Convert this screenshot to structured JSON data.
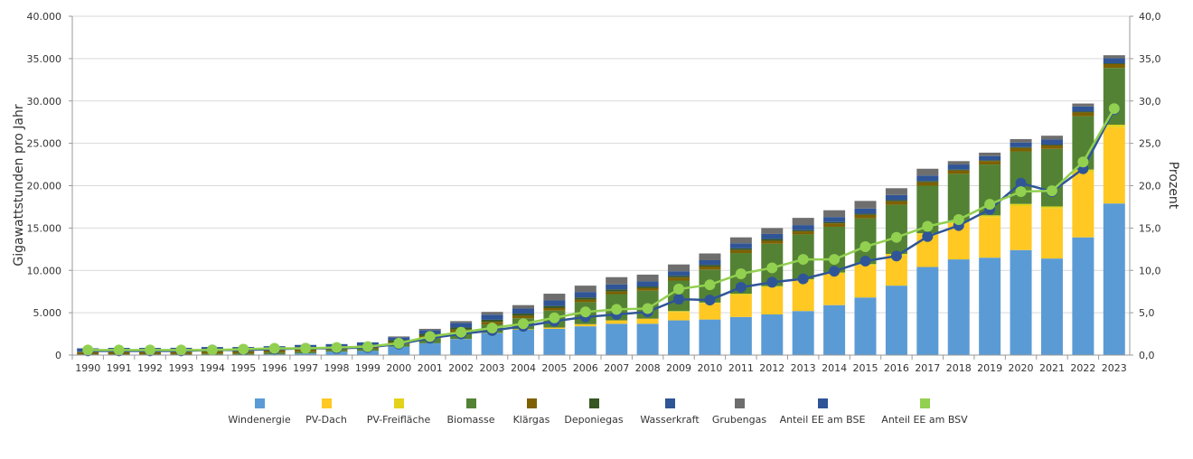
{
  "chart_data": {
    "type": "bar",
    "stacked": true,
    "ylabel": "Gigawattstunden pro Jahr",
    "y2label": "Prozent",
    "ylim": [
      0,
      40000
    ],
    "y2lim": [
      0,
      40
    ],
    "yticks": [
      "0",
      "5.000",
      "10.000",
      "15.000",
      "20.000",
      "25.000",
      "30.000",
      "35.000",
      "40.000"
    ],
    "y2ticks": [
      "0,0",
      "5,0",
      "10,0",
      "15,0",
      "20,0",
      "25,0",
      "30,0",
      "35,0",
      "40,0"
    ],
    "grid": true,
    "legend": "bottom",
    "categories": [
      "1990",
      "1991",
      "1992",
      "1993",
      "1994",
      "1995",
      "1996",
      "1997",
      "1998",
      "1999",
      "2000",
      "2001",
      "2002",
      "2003",
      "2004",
      "2005",
      "2006",
      "2007",
      "2008",
      "2009",
      "2010",
      "2011",
      "2012",
      "2013",
      "2014",
      "2015",
      "2016",
      "2017",
      "2018",
      "2019",
      "2020",
      "2021",
      "2022",
      "2023"
    ],
    "series": [
      {
        "name": "Windenergie",
        "color": "#5b9bd5",
        "values": [
          0,
          0,
          0,
          10,
          30,
          50,
          100,
          200,
          400,
          500,
          1000,
          1400,
          1900,
          2600,
          3000,
          3100,
          3400,
          3700,
          3700,
          4100,
          4200,
          4500,
          4800,
          5200,
          5900,
          6800,
          8200,
          10400,
          11300,
          11500,
          12400,
          11400,
          13900,
          17900
        ]
      },
      {
        "name": "PV-Dach",
        "color": "#ffc823",
        "values": [
          0,
          0,
          0,
          0,
          0,
          0,
          0,
          0,
          0,
          0,
          0,
          0,
          10,
          20,
          50,
          150,
          250,
          400,
          600,
          1000,
          1900,
          2600,
          3200,
          3600,
          3700,
          3800,
          3600,
          3800,
          4300,
          4800,
          5200,
          5900,
          7700,
          9000
        ]
      },
      {
        "name": "PV-Freifläche",
        "color": "#e3d21b",
        "values": [
          0,
          0,
          0,
          0,
          0,
          0,
          0,
          0,
          0,
          0,
          0,
          0,
          0,
          0,
          0,
          0,
          0,
          0,
          0,
          100,
          100,
          150,
          150,
          150,
          150,
          150,
          150,
          200,
          200,
          200,
          250,
          250,
          300,
          300
        ]
      },
      {
        "name": "Biomasse",
        "color": "#548235",
        "values": [
          100,
          100,
          100,
          100,
          150,
          150,
          200,
          200,
          200,
          250,
          300,
          600,
          800,
          1000,
          1300,
          2000,
          2600,
          3100,
          3300,
          3600,
          3900,
          4800,
          5000,
          5300,
          5400,
          5400,
          5800,
          5600,
          5600,
          6000,
          6200,
          6800,
          6300,
          6700
        ]
      },
      {
        "name": "Klärgas",
        "color": "#7f6000",
        "values": [
          250,
          250,
          250,
          250,
          250,
          250,
          250,
          250,
          250,
          250,
          250,
          250,
          300,
          300,
          300,
          300,
          300,
          300,
          300,
          350,
          350,
          350,
          350,
          350,
          400,
          400,
          400,
          400,
          400,
          400,
          400,
          400,
          450,
          450
        ]
      },
      {
        "name": "Deponiegas",
        "color": "#375623",
        "values": [
          50,
          50,
          50,
          50,
          50,
          50,
          50,
          100,
          100,
          150,
          200,
          250,
          250,
          250,
          250,
          250,
          250,
          250,
          200,
          200,
          200,
          200,
          200,
          150,
          150,
          150,
          150,
          150,
          100,
          100,
          100,
          100,
          100,
          100
        ]
      },
      {
        "name": "Wasserkraft",
        "color": "#2f5597",
        "values": [
          400,
          450,
          450,
          450,
          470,
          450,
          450,
          450,
          350,
          350,
          350,
          450,
          550,
          600,
          600,
          650,
          650,
          600,
          600,
          550,
          550,
          600,
          600,
          600,
          600,
          600,
          600,
          650,
          600,
          500,
          550,
          600,
          600,
          600
        ]
      },
      {
        "name": "Grubengas",
        "color": "#6e6e6e",
        "values": [
          0,
          0,
          0,
          0,
          0,
          0,
          0,
          0,
          0,
          0,
          100,
          150,
          200,
          330,
          400,
          800,
          750,
          850,
          800,
          800,
          800,
          700,
          700,
          850,
          800,
          900,
          800,
          800,
          400,
          400,
          400,
          450,
          350,
          350
        ]
      }
    ],
    "lines": [
      {
        "name": "Anteil EE am BSE",
        "color": "#2f5597",
        "values": [
          0.5,
          0.5,
          0.5,
          0.5,
          0.6,
          0.6,
          0.7,
          0.8,
          0.8,
          0.9,
          1.3,
          2.0,
          2.5,
          2.9,
          3.4,
          4.0,
          4.5,
          4.8,
          5.1,
          6.6,
          6.5,
          8.0,
          8.6,
          9.0,
          9.9,
          11.1,
          11.7,
          14.0,
          15.3,
          17.2,
          20.3,
          19.3,
          22.0,
          29.0
        ]
      },
      {
        "name": "Anteil EE am BSV",
        "color": "#92d050",
        "values": [
          0.6,
          0.6,
          0.6,
          0.6,
          0.6,
          0.7,
          0.8,
          0.8,
          0.9,
          1.0,
          1.4,
          2.2,
          2.7,
          3.2,
          3.7,
          4.4,
          5.1,
          5.4,
          5.5,
          7.8,
          8.3,
          9.6,
          10.3,
          11.3,
          11.3,
          12.8,
          13.9,
          15.2,
          16.0,
          17.8,
          19.3,
          19.4,
          22.8,
          29.1
        ]
      }
    ]
  }
}
